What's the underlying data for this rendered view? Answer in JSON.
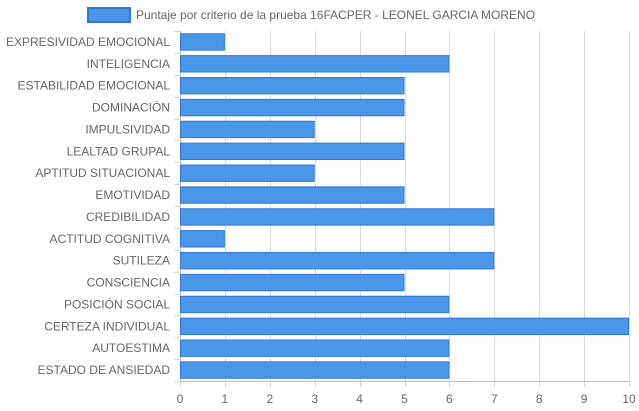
{
  "chart_data": {
    "type": "bar",
    "orientation": "horizontal",
    "legend": {
      "position": "top",
      "entries": [
        "Puntaje por criterio de la prueba 16FACPER - LEONEL GARCIA MORENO"
      ]
    },
    "categories": [
      "EXPRESIVIDAD EMOCIONAL",
      "INTELIGENCIA",
      "ESTABILIDAD EMOCIONAL",
      "DOMINACIÓN",
      "IMPULSIVIDAD",
      "LEALTAD GRUPAL",
      "APTITUD SITUACIONAL",
      "EMOTIVIDAD",
      "CREDIBILIDAD",
      "ACTITUD COGNITIVA",
      "SUTILEZA",
      "CONSCIENCIA",
      "POSICIÓN SOCIAL",
      "CERTEZA INDIVIDUAL",
      "AUTOESTIMA",
      "ESTADO DE ANSIEDAD"
    ],
    "series": [
      {
        "name": "Puntaje por criterio de la prueba 16FACPER - LEONEL GARCIA MORENO",
        "values": [
          1,
          6,
          5,
          5,
          3,
          5,
          3,
          5,
          7,
          1,
          7,
          5,
          6,
          10,
          6,
          6
        ]
      }
    ],
    "x_ticks": [
      "0",
      "1",
      "2",
      "3",
      "4",
      "5",
      "6",
      "7",
      "8",
      "9",
      "10"
    ],
    "xlim": [
      0,
      10
    ],
    "grid": true,
    "colors": {
      "bar_fill": "#4A96E8",
      "bar_stroke": "#3478D4",
      "grid": "#d9d9d9",
      "text": "#666666"
    }
  }
}
